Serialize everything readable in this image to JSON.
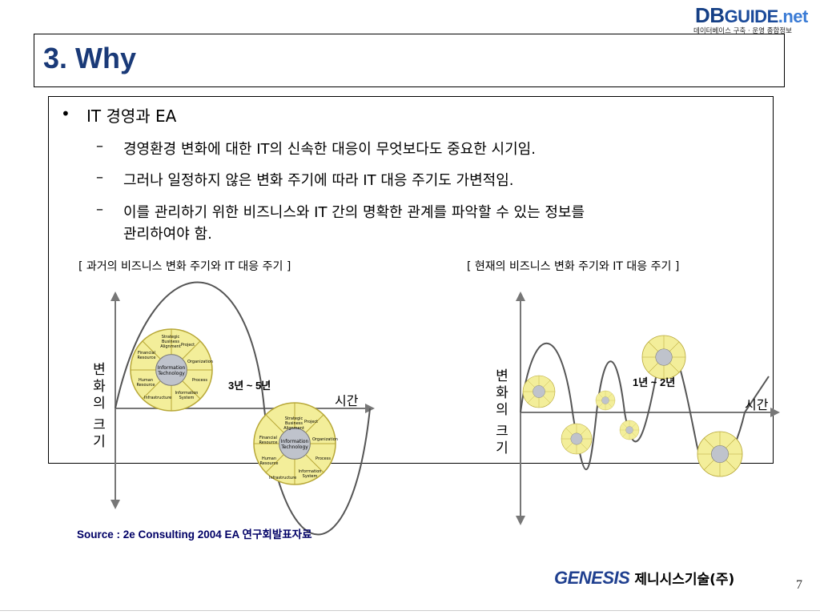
{
  "logo": {
    "db": "DB",
    "guide": "GUIDE",
    "net": ".net",
    "subtitle": "데이터베이스 구축 · 운영 종합정보"
  },
  "title": "3. Why",
  "bullet": {
    "symbol": "•",
    "text": "IT 경영과 EA"
  },
  "items": [
    "경영환경 변화에 대한 IT의 신속한 대응이 무엇보다도 중요한 시기임.",
    "그러나 일정하지 않은 변화 주기에 따라 IT 대응 주기도 가변적임.",
    "이를 관리하기 위한 비즈니스와 IT 간의 명확한 관계를 파악할 수 있는 정보를",
    "관리하여야 함."
  ],
  "dash": "–",
  "left_diagram": {
    "caption": "[ 과거의 비즈니스 변화 주기와 IT 대응 주기 ]",
    "ylabel": [
      "변",
      "화",
      "의",
      "크",
      "기"
    ],
    "xlabel": "시간",
    "range": "3년 ~ 5년"
  },
  "right_diagram": {
    "caption": "[ 현재의 비즈니스 변화 주기와 IT 대응 주기 ]",
    "ylabel": [
      "변",
      "화",
      "의",
      "크",
      "기"
    ],
    "xlabel": "시간",
    "range": "1년 ~ 2년"
  },
  "wheel": {
    "center": [
      "Information",
      "Technology"
    ],
    "segments": [
      "Strategic Business Alignment",
      "Project",
      "Organization",
      "Process",
      "Information System",
      "Infrastructure",
      "Human Resource",
      "Financial Resource"
    ]
  },
  "colors": {
    "wheel_fill": "#f3ee9a",
    "wheel_stroke": "#b8a838",
    "title": "#1a3a78",
    "source": "#000066",
    "brand": "#1f3f8f"
  },
  "source": "Source : 2e Consulting 2004 EA 연구회발표자료",
  "footer": {
    "company_en": "GENESIS",
    "company_kr": "제니시스기술(주)",
    "page_number": "7"
  }
}
